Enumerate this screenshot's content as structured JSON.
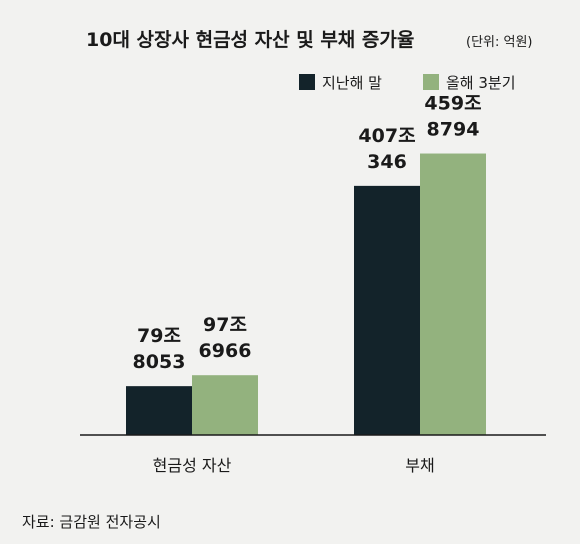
{
  "chart_data": {
    "type": "bar",
    "title": "10대 상장사 현금성 자산 및 부채 증가율",
    "unit": "(단위: 억원)",
    "categories": [
      "현금성 자산",
      "부채"
    ],
    "series": [
      {
        "name": "지난해 말",
        "color": "#13232a",
        "values": [
          798053,
          4070346
        ],
        "labels": [
          [
            "79조",
            "8053"
          ],
          [
            "407조",
            "346"
          ]
        ]
      },
      {
        "name": "올해 3분기",
        "color": "#93b27e",
        "values": [
          976966,
          4598794
        ],
        "labels": [
          [
            "97조",
            "6966"
          ],
          [
            "459조",
            "8794"
          ]
        ]
      }
    ],
    "ylim": [
      0,
      5800000
    ],
    "grid": false,
    "legend": "top-right",
    "source": "자료: 금감원 전자공시"
  }
}
